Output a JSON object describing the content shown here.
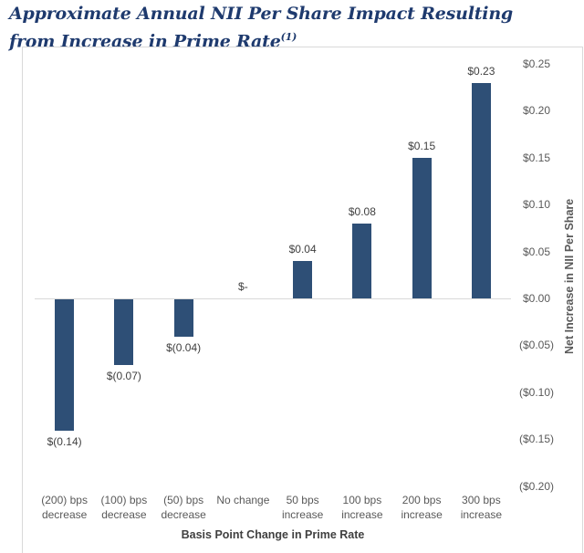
{
  "title": {
    "line1": "Approximate Annual NII Per Share Impact Resulting",
    "line2": "from Increase in Prime Rate",
    "superscript": "(1)"
  },
  "colors": {
    "title": "#1e3a6e",
    "bar": "#2e4f76",
    "frame_border": "#d9d9d9",
    "axis_line": "#d9d9d9",
    "tick_label": "#595959",
    "category_label": "#595959",
    "data_label": "#3f3f3f",
    "axis_title": "#404040"
  },
  "chart_data": {
    "type": "bar",
    "title": "Approximate Annual NII Per Share Impact Resulting from Increase in Prime Rate (1)",
    "categories": [
      "(200) bps decrease",
      "(100) bps decrease",
      "(50) bps decrease",
      "No change",
      "50 bps increase",
      "100 bps increase",
      "200 bps increase",
      "300 bps increase"
    ],
    "category_lines": [
      [
        "(200) bps",
        "decrease"
      ],
      [
        "(100) bps",
        "decrease"
      ],
      [
        "(50) bps",
        "decrease"
      ],
      [
        "No change"
      ],
      [
        "50 bps",
        "increase"
      ],
      [
        "100 bps",
        "increase"
      ],
      [
        "200 bps",
        "increase"
      ],
      [
        "300 bps",
        "increase"
      ]
    ],
    "values": [
      -0.14,
      -0.07,
      -0.04,
      0,
      0.04,
      0.08,
      0.15,
      0.23
    ],
    "data_labels": [
      "$(0.14)",
      "$(0.07)",
      "$(0.04)",
      "$-",
      "$0.04",
      "$0.08",
      "$0.15",
      "$0.23"
    ],
    "xlabel": "Basis Point Change in Prime Rate",
    "ylabel": "Net Increase in NII Per Share",
    "ylim": [
      -0.2,
      0.25
    ],
    "ytick_step": 0.05,
    "ytick_labels": [
      "$0.25",
      "$0.20",
      "$0.15",
      "$0.10",
      "$0.05",
      "$0.00",
      "($0.05)",
      "($0.10)",
      "($0.15)",
      "($0.20)"
    ],
    "grid": false,
    "legend": false
  }
}
